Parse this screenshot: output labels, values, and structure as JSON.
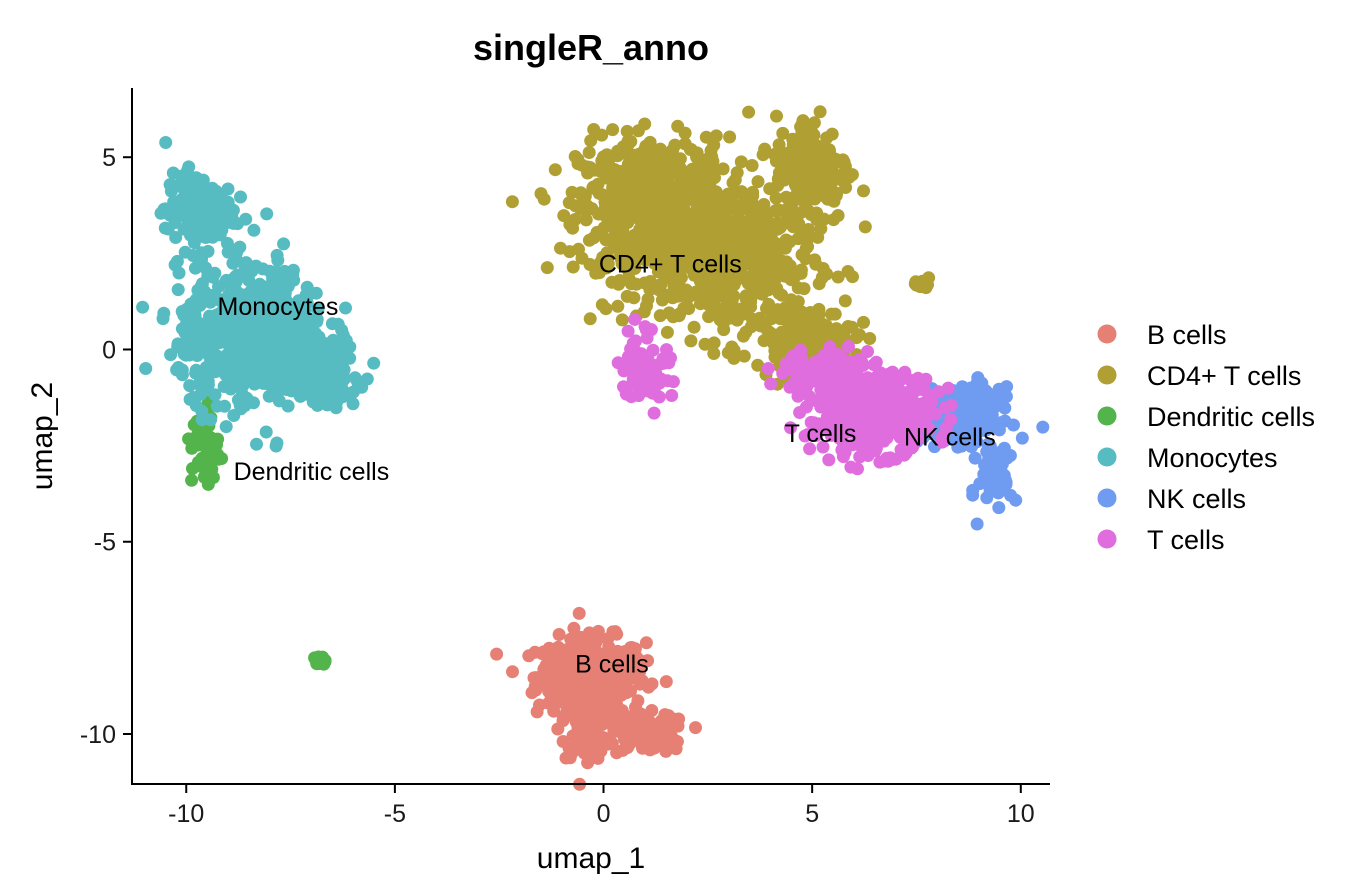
{
  "chart_data": {
    "type": "scatter",
    "title": "singleR_anno",
    "xlabel": "umap_1",
    "ylabel": "umap_2",
    "xlim": [
      -11.3,
      10.7
    ],
    "ylim": [
      -11.3,
      6.8
    ],
    "xticks": [
      -10,
      -5,
      0,
      5,
      10
    ],
    "xtick_labels": [
      "-10",
      "-5",
      "0",
      "5",
      "10"
    ],
    "yticks": [
      5,
      0,
      -5,
      -10
    ],
    "ytick_labels": [
      "5",
      "0",
      "-5",
      "-10"
    ],
    "grid": false,
    "legend_position": "right",
    "series": [
      {
        "name": "B cells",
        "color": "#E68075",
        "label": "B cells",
        "label_at": [
          0.2,
          -8.4
        ],
        "clusters": [
          {
            "cx": -0.3,
            "cy": -8.5,
            "sx": 0.65,
            "sy": 0.5,
            "n": 380
          },
          {
            "cx": 1.0,
            "cy": -10.0,
            "sx": 0.5,
            "sy": 0.25,
            "n": 110
          },
          {
            "cx": -0.4,
            "cy": -9.9,
            "sx": 0.3,
            "sy": 0.35,
            "n": 70
          }
        ]
      },
      {
        "name": "CD4+ T cells",
        "color": "#B09F33",
        "label": "CD4+ T cells",
        "label_at": [
          1.6,
          2.0
        ],
        "clusters": [
          {
            "cx": 1.2,
            "cy": 3.7,
            "sx": 0.9,
            "sy": 0.9,
            "n": 650
          },
          {
            "cx": 3.0,
            "cy": 2.3,
            "sx": 1.0,
            "sy": 1.0,
            "n": 450
          },
          {
            "cx": 5.0,
            "cy": 4.7,
            "sx": 0.45,
            "sy": 0.7,
            "n": 200
          },
          {
            "cx": 4.8,
            "cy": 0.3,
            "sx": 0.6,
            "sy": 0.4,
            "n": 150
          },
          {
            "cx": 7.6,
            "cy": 1.7,
            "sx": 0.12,
            "sy": 0.06,
            "n": 8
          }
        ]
      },
      {
        "name": "Dendritic cells",
        "color": "#52B44A",
        "label": "Dendritic cells",
        "label_at": [
          -7.0,
          -3.4
        ],
        "clusters": [
          {
            "cx": -9.55,
            "cy": -2.5,
            "sx": 0.16,
            "sy": 0.55,
            "n": 60
          },
          {
            "cx": -6.8,
            "cy": -8.1,
            "sx": 0.07,
            "sy": 0.06,
            "n": 15
          }
        ]
      },
      {
        "name": "Monocytes",
        "color": "#57BCC2",
        "label": "Monocytes",
        "label_at": [
          -7.8,
          0.9
        ],
        "clusters": [
          {
            "cx": -9.7,
            "cy": 3.6,
            "sx": 0.4,
            "sy": 0.5,
            "n": 180
          },
          {
            "cx": -8.4,
            "cy": 0.3,
            "sx": 0.9,
            "sy": 0.9,
            "n": 650
          },
          {
            "cx": -6.7,
            "cy": -0.6,
            "sx": 0.4,
            "sy": 0.4,
            "n": 120
          }
        ]
      },
      {
        "name": "NK cells",
        "color": "#6F9BF0",
        "label": "NK cells",
        "label_at": [
          8.3,
          -2.5
        ],
        "clusters": [
          {
            "cx": 8.6,
            "cy": -1.7,
            "sx": 0.45,
            "sy": 0.35,
            "n": 260
          },
          {
            "cx": 9.4,
            "cy": -3.2,
            "sx": 0.2,
            "sy": 0.5,
            "n": 60
          }
        ]
      },
      {
        "name": "T cells",
        "color": "#E06DDE",
        "label": "T cells",
        "label_at": [
          5.2,
          -2.4
        ],
        "clusters": [
          {
            "cx": 6.4,
            "cy": -1.7,
            "sx": 0.75,
            "sy": 0.5,
            "n": 420
          },
          {
            "cx": 1.0,
            "cy": -0.4,
            "sx": 0.3,
            "sy": 0.5,
            "n": 80
          },
          {
            "cx": 5.4,
            "cy": -0.6,
            "sx": 0.6,
            "sy": 0.35,
            "n": 100
          }
        ]
      }
    ]
  }
}
